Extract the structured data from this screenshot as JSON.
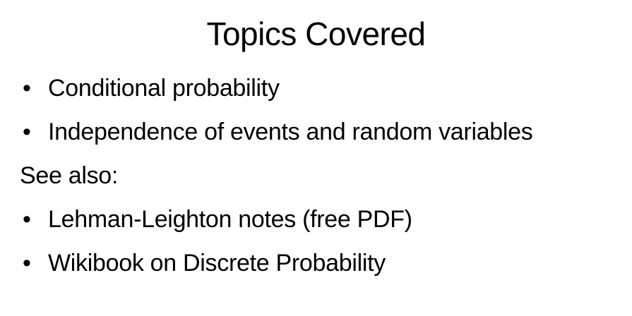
{
  "slide": {
    "title": "Topics Covered",
    "topics": [
      {
        "bullet": "•",
        "text": "Conditional probability"
      },
      {
        "bullet": "•",
        "text": "Independence of events and random variables"
      }
    ],
    "see_also_label": "See also:",
    "references": [
      {
        "bullet": "•",
        "text": "Lehman-Leighton notes (free PDF)"
      },
      {
        "bullet": "•",
        "text": "Wikibook on Discrete Probability"
      }
    ]
  }
}
